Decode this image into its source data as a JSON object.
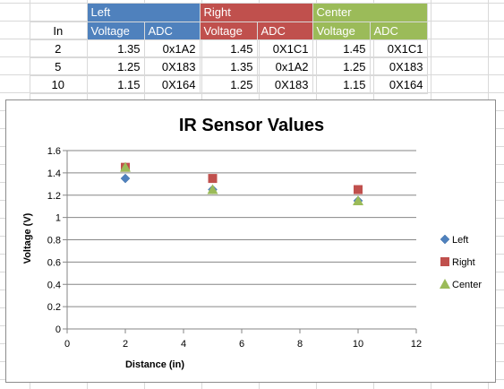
{
  "table": {
    "in_header": "In",
    "groups": [
      {
        "name": "Left",
        "color": "#4f81bd"
      },
      {
        "name": "Right",
        "color": "#c0504d"
      },
      {
        "name": "Center",
        "color": "#9bbb59"
      }
    ],
    "sub_headers": {
      "voltage": "Voltage",
      "adc": "ADC"
    },
    "rows": [
      {
        "in": "2",
        "left_v": "1.35",
        "left_adc": "0x1A2",
        "right_v": "1.45",
        "right_adc": "0X1C1",
        "center_v": "1.45",
        "center_adc": "0X1C1"
      },
      {
        "in": "5",
        "left_v": "1.25",
        "left_adc": "0X183",
        "right_v": "1.35",
        "right_adc": "0x1A2",
        "center_v": "1.25",
        "center_adc": "0X183"
      },
      {
        "in": "10",
        "left_v": "1.15",
        "left_adc": "0X164",
        "right_v": "1.25",
        "right_adc": "0X183",
        "center_v": "1.15",
        "center_adc": "0X164"
      }
    ]
  },
  "chart_data": {
    "type": "scatter",
    "title": "IR Sensor Values",
    "xlabel": "Distance  (in)",
    "ylabel": "Voltage (V)",
    "xlim": [
      0,
      12
    ],
    "ylim": [
      0,
      1.6
    ],
    "xticks": [
      0,
      2,
      4,
      6,
      8,
      10,
      12
    ],
    "yticks": [
      0,
      0.2,
      0.4,
      0.6,
      0.8,
      1,
      1.2,
      1.4,
      1.6
    ],
    "grid": "horizontal",
    "legend_position": "right",
    "series": [
      {
        "name": "Left",
        "marker": "diamond",
        "color": "#4f81bd",
        "x": [
          2,
          5,
          10
        ],
        "y": [
          1.35,
          1.25,
          1.15
        ]
      },
      {
        "name": "Right",
        "marker": "square",
        "color": "#c0504d",
        "x": [
          2,
          5,
          10
        ],
        "y": [
          1.45,
          1.35,
          1.25
        ]
      },
      {
        "name": "Center",
        "marker": "triangle",
        "color": "#9bbb59",
        "x": [
          2,
          5,
          10
        ],
        "y": [
          1.45,
          1.25,
          1.15
        ]
      }
    ]
  }
}
